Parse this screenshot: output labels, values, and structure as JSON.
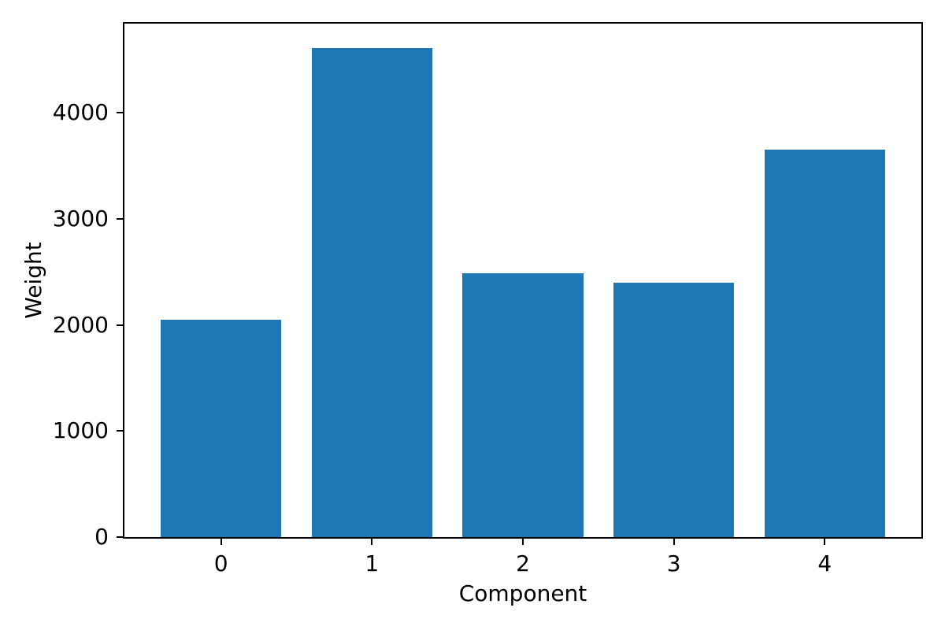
{
  "chart_data": {
    "type": "bar",
    "xlabel": "Component",
    "ylabel": "Weight",
    "categories": [
      "0",
      "1",
      "2",
      "3",
      "4"
    ],
    "values": [
      2046,
      4610,
      2486,
      2401,
      3655
    ],
    "yticks": [
      0,
      1000,
      2000,
      3000,
      4000
    ],
    "xlim": [
      -0.64,
      4.64
    ],
    "ylim": [
      0,
      4840
    ],
    "bar_width": 0.8,
    "bar_color": "#1f77b4",
    "axis_color": "#000000",
    "background_color": "#ffffff",
    "grid": false,
    "legend": "none",
    "title": ""
  }
}
